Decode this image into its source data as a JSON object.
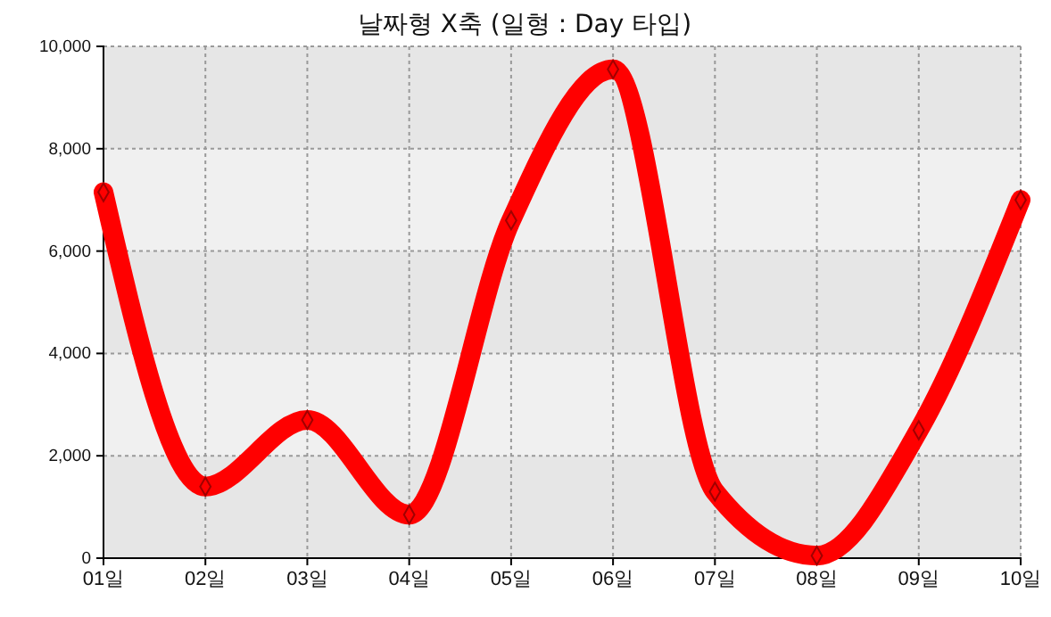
{
  "chart_data": {
    "type": "line",
    "title": "날짜형 X축 (일형 : Day 타입)",
    "categories": [
      "01일",
      "02일",
      "03일",
      "04일",
      "05일",
      "06일",
      "07일",
      "08일",
      "09일",
      "10일"
    ],
    "series": [
      {
        "color": "#ff0000",
        "values": [
          7150,
          1400,
          2700,
          850,
          6600,
          9550,
          1300,
          50,
          2500,
          7000
        ]
      }
    ],
    "ylim": [
      0,
      10000
    ],
    "yticks": [
      {
        "value": 0,
        "label": "0"
      },
      {
        "value": 2000,
        "label": "2,000"
      },
      {
        "value": 4000,
        "label": "4,000"
      },
      {
        "value": 6000,
        "label": "6,000"
      },
      {
        "value": 8000,
        "label": "8,000"
      },
      {
        "value": 10000,
        "label": "10,000"
      }
    ],
    "grid": true,
    "marker": "diamond",
    "line_style": "solid"
  }
}
